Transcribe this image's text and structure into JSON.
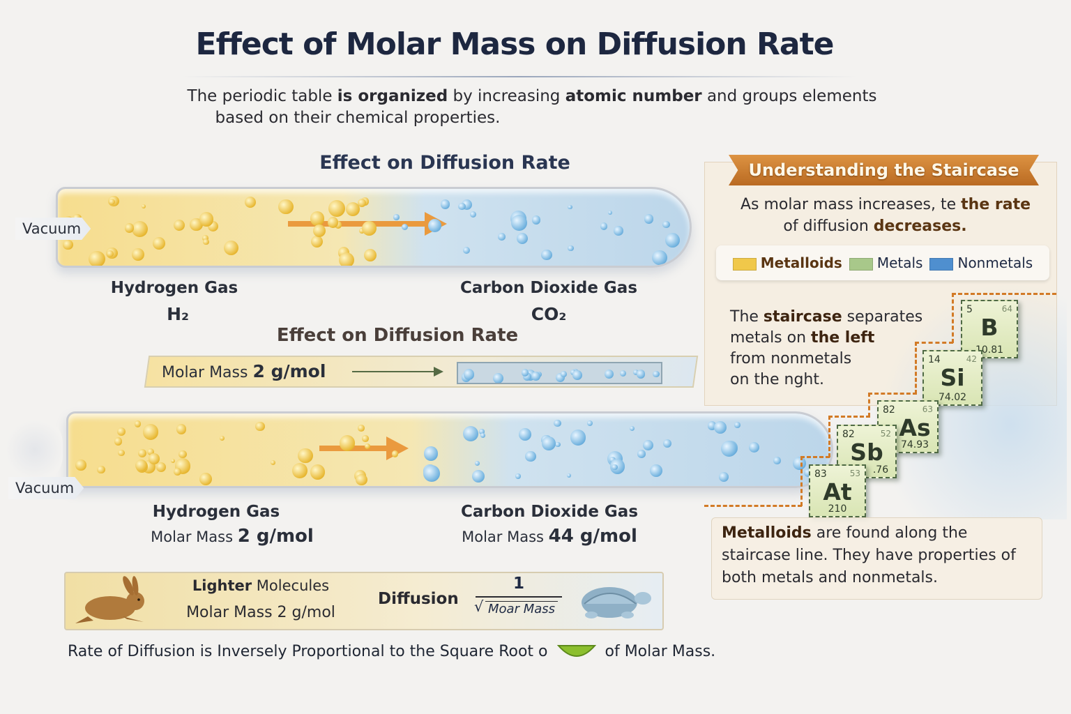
{
  "title": "Effect of Molar Mass on Diffusion Rate",
  "subtitle": {
    "line1_parts": [
      "The periodic table ",
      "is organized",
      " by increasing ",
      "atomic number",
      " and groups elements"
    ],
    "line2": "based on their chemical properties."
  },
  "upper_section": {
    "heading": "Effect on Diffusion Rate",
    "vacuum_label": "Vacuum",
    "left_gas": {
      "name": "Hydrogen Gas",
      "formula": "H₂"
    },
    "right_gas": {
      "name": "Carbon Dioxide Gas",
      "formula": "CO₂"
    }
  },
  "middle_section": {
    "heading": "Effect on Diffusion Rate",
    "molar_mass_label": "Molar Mass",
    "molar_mass_value": "2 g/mol"
  },
  "lower_section": {
    "vacuum_label": "Vacuum",
    "left_gas": {
      "name": "Hydrogen Gas",
      "mass_label": "Molar Mass",
      "mass_value": "2 g/mol"
    },
    "right_gas": {
      "name": "Carbon Dioxide Gas",
      "mass_label": "Molar Mass",
      "mass_value": "44 g/mol"
    }
  },
  "comparison_box": {
    "rabbit_icon": "rabbit-icon",
    "turtle_icon": "turtle-icon",
    "line1_bold": "Lighter",
    "line1_rest": " Molecules",
    "line2": "Molar Mass 2 g/mol",
    "formula_label": "Diffusion",
    "numerator": "1",
    "denominator": "Moar Mass"
  },
  "footer": {
    "text_before": "Rate of Diffusion is Inversely Proportional to the Square Root o",
    "text_after": "of Molar Mass."
  },
  "staircase_panel": {
    "ribbon": "Understanding the Staircase",
    "intro_parts": [
      "As molar mass increases, te ",
      "the rate",
      "of diffusion ",
      "decreases."
    ],
    "legend": [
      {
        "label": "Metalloids",
        "color": "#f0c84a"
      },
      {
        "label": "Metals",
        "color": "#a8c88a"
      },
      {
        "label": "Nonmetals",
        "color": "#4f8fcf"
      }
    ],
    "stair_text_parts": [
      "The ",
      "staircase",
      " separates",
      "metals on ",
      "the left",
      "from nonmetals",
      "on the nght."
    ],
    "elements": [
      {
        "number": "5",
        "group": "64",
        "symbol": "B",
        "mass": "10.81"
      },
      {
        "number": "14",
        "group": "42",
        "symbol": "Si",
        "mass": "74.02"
      },
      {
        "number": "82",
        "group": "63",
        "symbol": "As",
        "mass": "74.93"
      },
      {
        "number": "82",
        "group": "52",
        "symbol": "Sb",
        "mass": ".76"
      },
      {
        "number": "83",
        "group": "53",
        "symbol": "At",
        "mass": "210"
      }
    ],
    "metalloid_note_bold": "Metalloids",
    "metalloid_note_rest": " are found along the staircase line. They have properties of both metals and nonmetals."
  },
  "colors": {
    "title": "#1d2740",
    "ribbon": "#c97a2c",
    "hydrogen": "#e8b833",
    "co2": "#6fb1de",
    "arrow": "#ea9a3e",
    "tile": "#d9e5b4"
  }
}
